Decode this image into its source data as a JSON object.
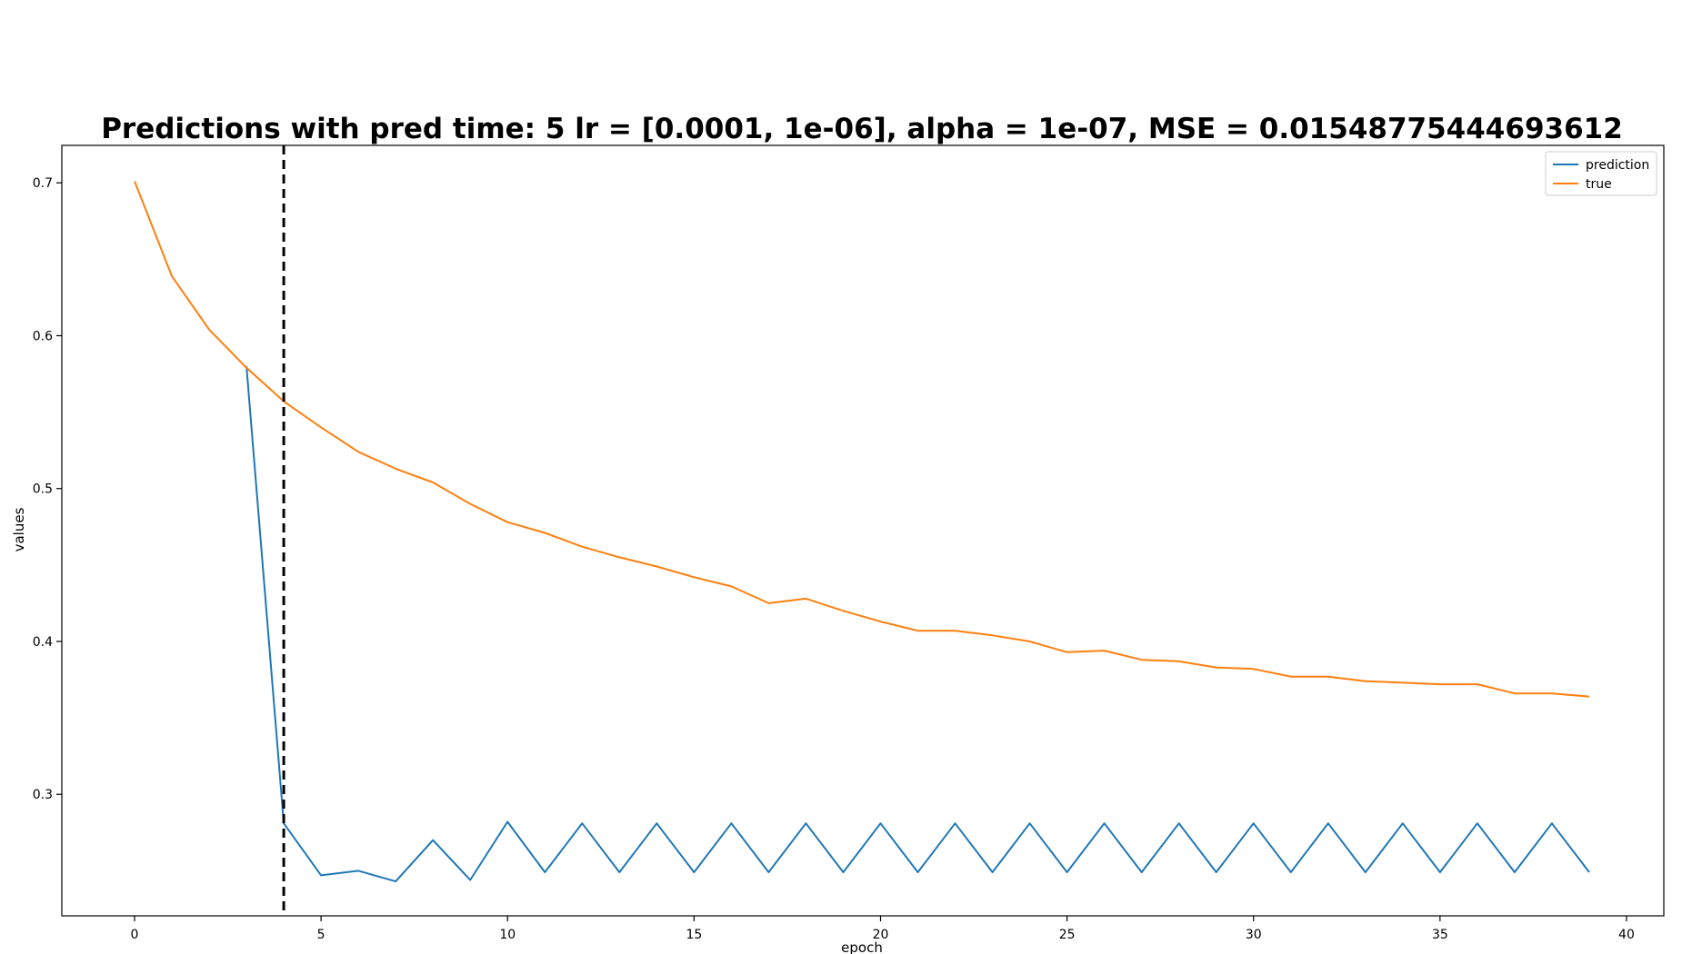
{
  "chart_data": {
    "type": "line",
    "title": "Predictions with pred time: 5 lr = [0.0001, 1e-06], alpha = 1e-07, MSE = 0.01548775444693612",
    "xlabel": "epoch",
    "ylabel": "values",
    "xlim": [
      -1.95,
      41.0
    ],
    "ylim": [
      0.2205,
      0.7245
    ],
    "xticks": [
      0,
      5,
      10,
      15,
      20,
      25,
      30,
      35,
      40
    ],
    "yticks": [
      0.3,
      0.4,
      0.5,
      0.6,
      0.7
    ],
    "xtick_labels": [
      "0",
      "5",
      "10",
      "15",
      "20",
      "25",
      "30",
      "35",
      "40"
    ],
    "ytick_labels": [
      "0.3",
      "0.4",
      "0.5",
      "0.6",
      "0.7"
    ],
    "grid": false,
    "legend_position": "top-right",
    "vline": {
      "x": 4,
      "style": "dashed",
      "color": "#000000"
    },
    "series": [
      {
        "name": "prediction",
        "color": "#1f77b4",
        "x": [
          3,
          4,
          5,
          6,
          7,
          8,
          9,
          10,
          11,
          12,
          13,
          14,
          15,
          16,
          17,
          18,
          19,
          20,
          21,
          22,
          23,
          24,
          25,
          26,
          27,
          28,
          29,
          30,
          31,
          32,
          33,
          34,
          35,
          36,
          37,
          38,
          39
        ],
        "values": [
          0.58,
          0.281,
          0.247,
          0.25,
          0.243,
          0.27,
          0.244,
          0.282,
          0.249,
          0.281,
          0.249,
          0.281,
          0.249,
          0.281,
          0.249,
          0.281,
          0.249,
          0.281,
          0.249,
          0.281,
          0.249,
          0.281,
          0.249,
          0.281,
          0.249,
          0.281,
          0.249,
          0.281,
          0.249,
          0.281,
          0.249,
          0.281,
          0.249,
          0.281,
          0.249,
          0.281,
          0.249
        ]
      },
      {
        "name": "true",
        "color": "#ff7f0e",
        "x": [
          0,
          1,
          2,
          3,
          4,
          5,
          6,
          7,
          8,
          9,
          10,
          11,
          12,
          13,
          14,
          15,
          16,
          17,
          18,
          19,
          20,
          21,
          22,
          23,
          24,
          25,
          26,
          27,
          28,
          29,
          30,
          31,
          32,
          33,
          34,
          35,
          36,
          37,
          38,
          39
        ],
        "values": [
          0.701,
          0.639,
          0.604,
          0.579,
          0.557,
          0.54,
          0.524,
          0.513,
          0.504,
          0.49,
          0.478,
          0.471,
          0.462,
          0.455,
          0.449,
          0.442,
          0.436,
          0.425,
          0.428,
          0.42,
          0.413,
          0.407,
          0.407,
          0.404,
          0.4,
          0.393,
          0.394,
          0.388,
          0.387,
          0.383,
          0.382,
          0.377,
          0.377,
          0.374,
          0.373,
          0.372,
          0.372,
          0.366,
          0.366,
          0.364
        ]
      }
    ]
  }
}
